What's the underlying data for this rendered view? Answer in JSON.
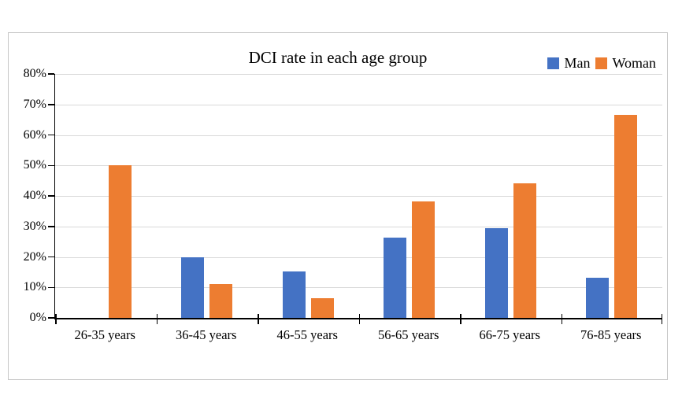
{
  "chart_data": {
    "type": "bar",
    "title": "DCI rate in each age group",
    "categories": [
      "26-35 years",
      "36-45 years",
      "46-55 years",
      "56-65 years",
      "66-75 years",
      "76-85 years"
    ],
    "series": [
      {
        "name": "Man",
        "color": "#4472C4",
        "values": [
          0,
          20,
          15.2,
          26.3,
          29.4,
          13.2
        ]
      },
      {
        "name": "Woman",
        "color": "#ED7D31",
        "values": [
          50,
          11.1,
          6.5,
          38.2,
          44.1,
          66.7
        ]
      }
    ],
    "ylabel": "",
    "xlabel": "",
    "ylim": [
      0,
      80
    ],
    "ytick_step": 10,
    "yticks": [
      "0%",
      "10%",
      "20%",
      "30%",
      "40%",
      "50%",
      "60%",
      "70%",
      "80%"
    ],
    "grid": "horizontal",
    "legend_position": "top-right",
    "gridline_color": "#d9d9d9",
    "axis_color": "#000000",
    "figure_border_color": "#c6c6c6"
  }
}
